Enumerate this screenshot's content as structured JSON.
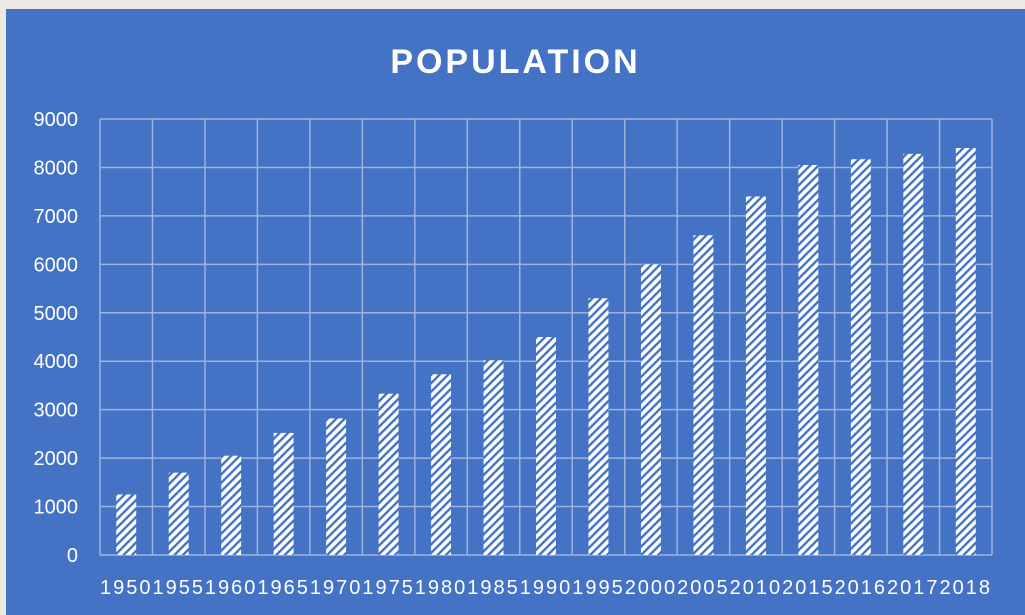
{
  "chart_data": {
    "type": "bar",
    "title": "POPULATION",
    "xlabel": "",
    "ylabel": "",
    "categories": [
      "1950",
      "1955",
      "1960",
      "1965",
      "1970",
      "1975",
      "1980",
      "1985",
      "1990",
      "1995",
      "2000",
      "2005",
      "2010",
      "2015",
      "2016",
      "2017",
      "2018"
    ],
    "values": [
      1250,
      1700,
      2050,
      2520,
      2820,
      3330,
      3730,
      4020,
      4500,
      5300,
      6000,
      6600,
      7400,
      8050,
      8170,
      8280,
      8400
    ],
    "ylim": [
      0,
      9000
    ],
    "yticks": [
      "0",
      "1000",
      "2000",
      "3000",
      "4000",
      "5000",
      "6000",
      "7000",
      "8000",
      "9000"
    ],
    "grid": true,
    "legend": "none",
    "colors": {
      "background": "#4472c4",
      "bar_fill": "#ffffff",
      "bar_hatch": "#4472c4",
      "grid": "#9db3e0",
      "text": "#ffffff"
    }
  }
}
